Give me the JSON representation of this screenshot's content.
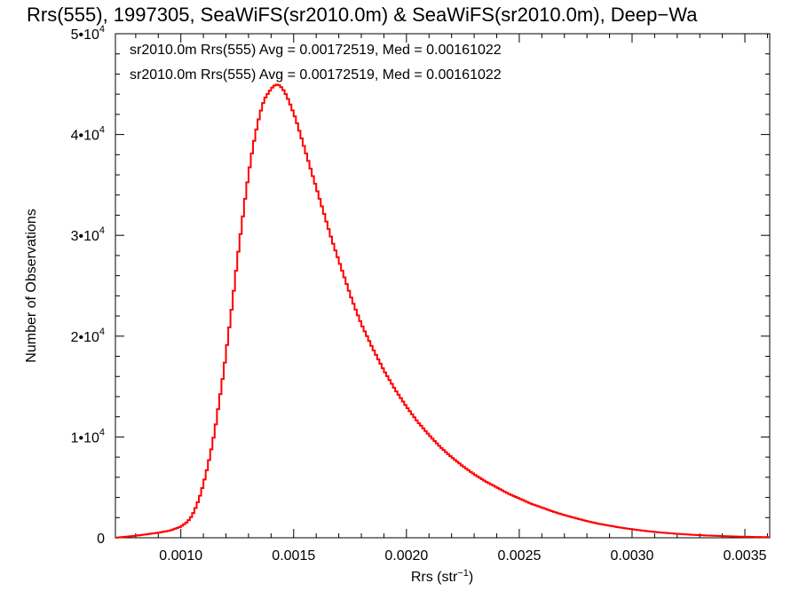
{
  "chart_data": {
    "type": "histogram",
    "title": "Rrs(555), 1997305, SeaWiFS(sr2010.0m) & SeaWiFS(sr2010.0m), Deep−Wa",
    "xlabel_main": "Rrs (str",
    "xlabel_sup": "−1",
    "xlabel_close": ")",
    "ylabel": "Number of Observations",
    "xlim": [
      0.00071,
      0.00361
    ],
    "ylim": [
      0,
      50000
    ],
    "xticks": [
      {
        "value": 0.001,
        "label": "0.0010"
      },
      {
        "value": 0.0015,
        "label": "0.0015"
      },
      {
        "value": 0.002,
        "label": "0.0020"
      },
      {
        "value": 0.0025,
        "label": "0.0025"
      },
      {
        "value": 0.003,
        "label": "0.0030"
      },
      {
        "value": 0.0035,
        "label": "0.0035"
      }
    ],
    "yticks": [
      {
        "value": 0,
        "base": "0",
        "exp": ""
      },
      {
        "value": 10000,
        "base": "1•10",
        "exp": "4"
      },
      {
        "value": 20000,
        "base": "2•10",
        "exp": "4"
      },
      {
        "value": 30000,
        "base": "3•10",
        "exp": "4"
      },
      {
        "value": 40000,
        "base": "4•10",
        "exp": "4"
      },
      {
        "value": 50000,
        "base": "5•10",
        "exp": "4"
      }
    ],
    "annotations": [
      {
        "text": "sr2010.0m Rrs(555) Avg = 0.00172519, Med = 0.00161022",
        "color": "#000000"
      },
      {
        "text": "sr2010.0m Rrs(555) Avg = 0.00172519, Med = 0.00161022",
        "color": "#ff0000"
      }
    ],
    "series": [
      {
        "color": "#ff0000",
        "bin_width": 1e-05,
        "points": [
          [
            0.00071,
            0
          ],
          [
            0.0008,
            200
          ],
          [
            0.0009,
            500
          ],
          [
            0.00095,
            700
          ],
          [
            0.001,
            1100
          ],
          [
            0.00103,
            1600
          ],
          [
            0.00105,
            2200
          ],
          [
            0.00107,
            3200
          ],
          [
            0.00109,
            4500
          ],
          [
            0.00111,
            6200
          ],
          [
            0.00113,
            8200
          ],
          [
            0.00115,
            10500
          ],
          [
            0.00117,
            13500
          ],
          [
            0.00119,
            16500
          ],
          [
            0.00121,
            20000
          ],
          [
            0.00123,
            23500
          ],
          [
            0.00125,
            27500
          ],
          [
            0.00127,
            31000
          ],
          [
            0.00129,
            34500
          ],
          [
            0.00131,
            37500
          ],
          [
            0.00133,
            40000
          ],
          [
            0.00135,
            42000
          ],
          [
            0.00137,
            43500
          ],
          [
            0.00139,
            44200
          ],
          [
            0.00141,
            44800
          ],
          [
            0.00143,
            45000
          ],
          [
            0.00145,
            44600
          ],
          [
            0.00147,
            43800
          ],
          [
            0.00149,
            42700
          ],
          [
            0.00151,
            41500
          ],
          [
            0.00153,
            40000
          ],
          [
            0.00155,
            38500
          ],
          [
            0.00157,
            37000
          ],
          [
            0.00159,
            35500
          ],
          [
            0.00161,
            34000
          ],
          [
            0.00163,
            32500
          ],
          [
            0.00165,
            31000
          ],
          [
            0.00167,
            29500
          ],
          [
            0.0017,
            27500
          ],
          [
            0.00173,
            25500
          ],
          [
            0.00176,
            23500
          ],
          [
            0.0018,
            21200
          ],
          [
            0.00185,
            18800
          ],
          [
            0.0019,
            16600
          ],
          [
            0.00195,
            14700
          ],
          [
            0.002,
            13000
          ],
          [
            0.00205,
            11500
          ],
          [
            0.0021,
            10200
          ],
          [
            0.00215,
            9000
          ],
          [
            0.0022,
            8000
          ],
          [
            0.00225,
            7100
          ],
          [
            0.0023,
            6300
          ],
          [
            0.00235,
            5600
          ],
          [
            0.0024,
            5000
          ],
          [
            0.00245,
            4400
          ],
          [
            0.0025,
            3900
          ],
          [
            0.00255,
            3400
          ],
          [
            0.0026,
            3000
          ],
          [
            0.00265,
            2600
          ],
          [
            0.0027,
            2250
          ],
          [
            0.00275,
            1950
          ],
          [
            0.0028,
            1650
          ],
          [
            0.00285,
            1400
          ],
          [
            0.0029,
            1200
          ],
          [
            0.00295,
            1000
          ],
          [
            0.003,
            850
          ],
          [
            0.00305,
            700
          ],
          [
            0.0031,
            580
          ],
          [
            0.00315,
            480
          ],
          [
            0.0032,
            390
          ],
          [
            0.00325,
            320
          ],
          [
            0.0033,
            260
          ],
          [
            0.00335,
            210
          ],
          [
            0.0034,
            170
          ],
          [
            0.00345,
            130
          ],
          [
            0.0035,
            100
          ],
          [
            0.00355,
            80
          ],
          [
            0.00361,
            60
          ]
        ]
      }
    ]
  }
}
